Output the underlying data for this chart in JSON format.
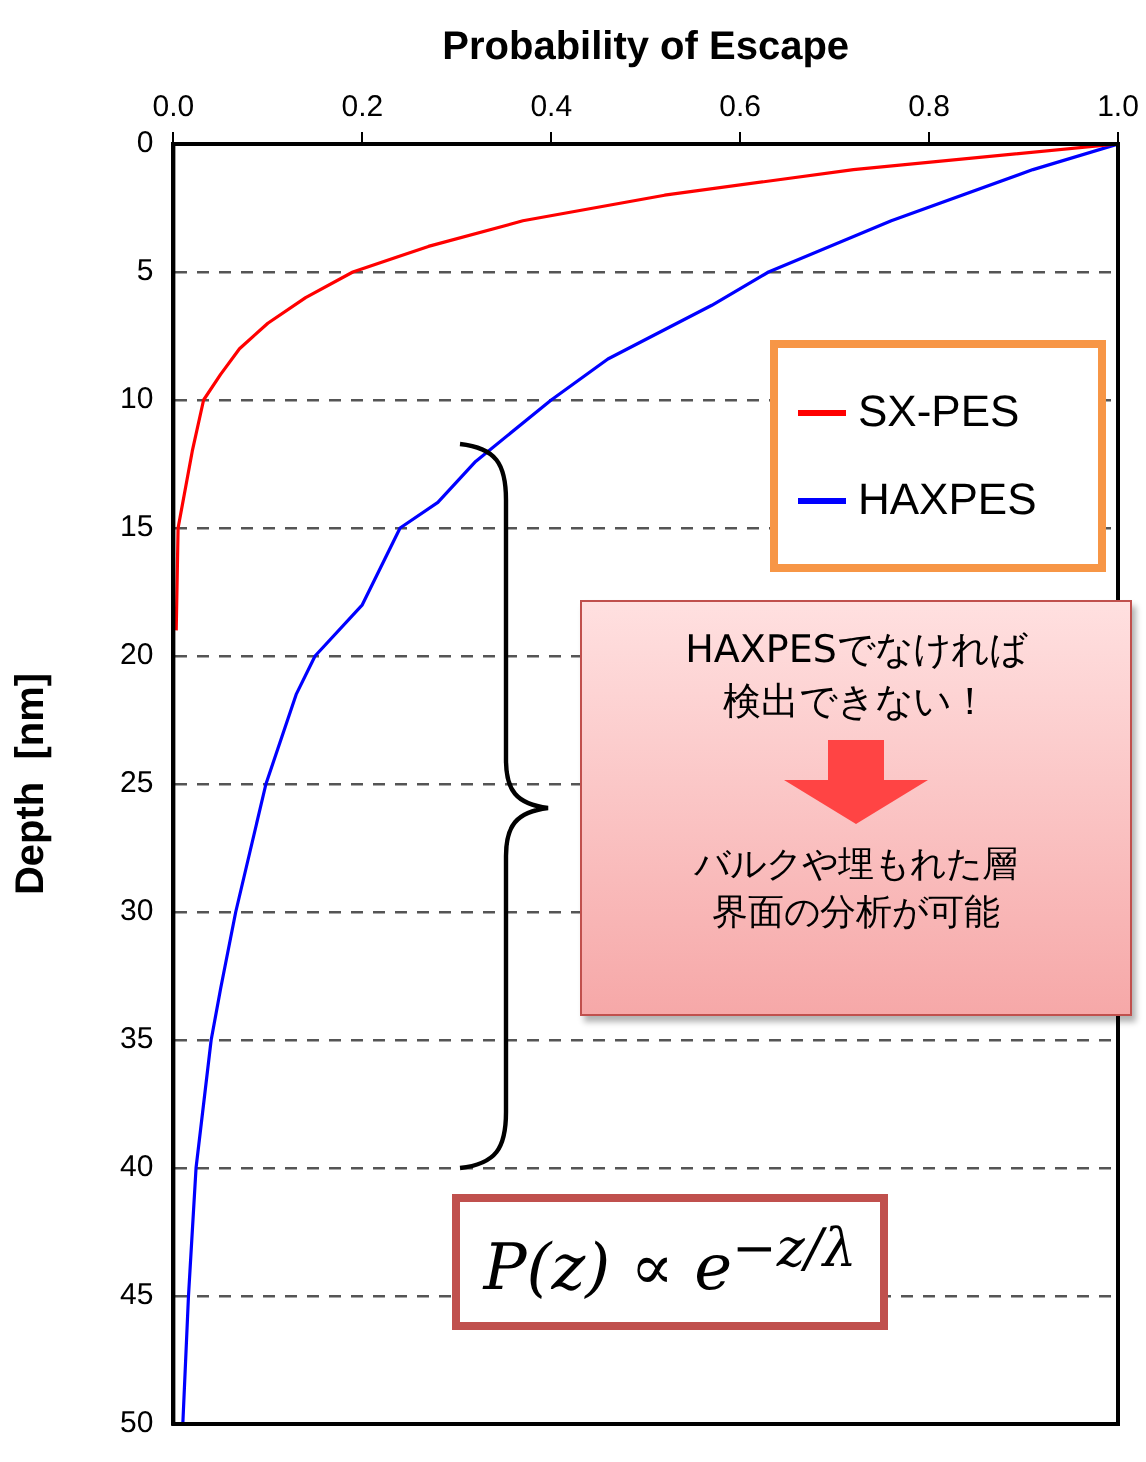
{
  "chart_data": {
    "type": "line",
    "xlabel": "Probability of Escape",
    "ylabel": "Depth  [nm]",
    "xlim": [
      0,
      1
    ],
    "xticks": [
      {
        "value": 0,
        "label": "0.0"
      },
      0.2,
      0.4,
      0.6,
      0.8,
      {
        "value": 1,
        "label": "1.0"
      }
    ],
    "ylim": [
      50,
      0
    ],
    "yticks": [
      0,
      5,
      10,
      15,
      20,
      25,
      30,
      35,
      40,
      45,
      50
    ],
    "grid": "y",
    "legend": "top right",
    "marker": "none",
    "series": [
      {
        "name": "SX-PES",
        "color": "#ff0000",
        "x": [
          1.0,
          0.72,
          0.52,
          0.37,
          0.27,
          0.19,
          0.14,
          0.1,
          0.07,
          0.05,
          0.032,
          0.02,
          0.005,
          0.003
        ],
        "values": [
          0,
          1,
          2,
          3,
          4,
          5,
          6,
          7,
          8,
          9,
          10,
          12,
          15,
          19
        ]
      },
      {
        "name": "HAXPES",
        "color": "#0000ff",
        "x": [
          1.0,
          0.91,
          0.76,
          0.63,
          0.57,
          0.46,
          0.4,
          0.32,
          0.28,
          0.24,
          0.2,
          0.15,
          0.13,
          0.098,
          0.066,
          0.05,
          0.04,
          0.024,
          0.016,
          0.01
        ],
        "values": [
          0,
          1,
          3,
          5,
          6.3,
          8.4,
          10,
          12.4,
          14,
          15,
          18,
          20,
          21.5,
          25,
          30,
          33,
          35,
          40,
          45,
          50
        ]
      }
    ],
    "annotations": [
      "HAXPESでなければ",
      "検出できない！",
      "バルクや埋もれた層",
      "界面の分析が可能",
      "P(z) ∝ e$^{−z/λ}$"
    ]
  }
}
